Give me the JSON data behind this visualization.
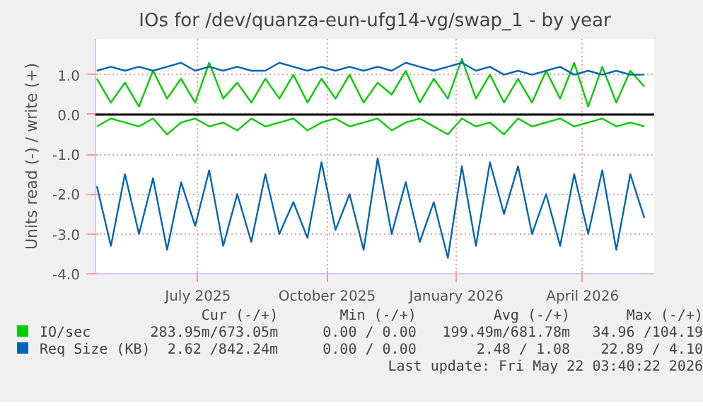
{
  "chart_data": {
    "type": "line",
    "title": "IOs for /dev/quanza-eun-ufg14-vg/swap_1 - by year",
    "ylabel": "Units read (-) / write (+)",
    "x": [
      "2025-04-20",
      "2025-04-30",
      "2025-05-10",
      "2025-05-20",
      "2025-05-30",
      "2025-06-09",
      "2025-06-19",
      "2025-06-29",
      "2025-07-09",
      "2025-07-19",
      "2025-07-29",
      "2025-08-08",
      "2025-08-18",
      "2025-08-28",
      "2025-09-07",
      "2025-09-17",
      "2025-09-27",
      "2025-10-07",
      "2025-10-17",
      "2025-10-27",
      "2025-11-06",
      "2025-11-16",
      "2025-11-26",
      "2025-12-06",
      "2025-12-16",
      "2025-12-26",
      "2026-01-05",
      "2026-01-15",
      "2026-01-25",
      "2026-02-04",
      "2026-02-14",
      "2026-02-24",
      "2026-03-06",
      "2026-03-16",
      "2026-03-26",
      "2026-04-05",
      "2026-04-15",
      "2026-04-25",
      "2026-05-05",
      "2026-05-15"
    ],
    "series": [
      {
        "name": "IO/sec",
        "color": "#00cc00",
        "values": [
          0.9,
          0.3,
          0.8,
          0.2,
          1.1,
          0.4,
          0.9,
          0.3,
          1.3,
          0.4,
          0.8,
          0.3,
          0.9,
          0.4,
          1.0,
          0.3,
          0.9,
          0.4,
          1.0,
          0.3,
          0.8,
          0.5,
          1.1,
          0.3,
          0.9,
          0.4,
          1.4,
          0.4,
          1.0,
          0.3,
          0.9,
          0.3,
          1.1,
          0.4,
          1.3,
          0.2,
          1.2,
          0.3,
          1.1,
          0.7
        ]
      },
      {
        "color": "#00cc00",
        "values": [
          -0.3,
          -0.1,
          -0.2,
          -0.3,
          -0.1,
          -0.5,
          -0.2,
          -0.1,
          -0.3,
          -0.2,
          -0.4,
          -0.1,
          -0.3,
          -0.2,
          -0.1,
          -0.4,
          -0.2,
          -0.1,
          -0.3,
          -0.2,
          -0.1,
          -0.4,
          -0.2,
          -0.1,
          -0.3,
          -0.5,
          -0.1,
          -0.3,
          -0.2,
          -0.5,
          -0.1,
          -0.3,
          -0.2,
          -0.1,
          -0.3,
          -0.2,
          -0.1,
          -0.3,
          -0.2,
          -0.3
        ]
      },
      {
        "name": "Req Size (KB)",
        "color": "#0066b3",
        "values": [
          1.1,
          1.2,
          1.1,
          1.2,
          1.1,
          1.2,
          1.3,
          1.1,
          1.2,
          1.1,
          1.2,
          1.1,
          1.1,
          1.3,
          1.2,
          1.1,
          1.2,
          1.1,
          1.2,
          1.1,
          1.2,
          1.1,
          1.3,
          1.2,
          1.1,
          1.2,
          1.3,
          1.1,
          1.2,
          1.0,
          1.1,
          1.0,
          1.1,
          1.2,
          1.0,
          1.1,
          1.0,
          1.1,
          1.0,
          1.0
        ]
      },
      {
        "color": "#0066b3",
        "values": [
          -1.8,
          -3.3,
          -1.5,
          -3.0,
          -1.6,
          -3.4,
          -1.7,
          -2.8,
          -1.4,
          -3.3,
          -2.0,
          -3.2,
          -1.5,
          -3.0,
          -2.2,
          -3.1,
          -1.2,
          -2.9,
          -2.0,
          -3.4,
          -1.1,
          -3.0,
          -1.7,
          -3.2,
          -2.2,
          -3.6,
          -1.3,
          -3.3,
          -1.2,
          -2.5,
          -1.3,
          -3.0,
          -2.0,
          -3.3,
          -1.5,
          -3.0,
          -1.4,
          -3.4,
          -1.5,
          -2.6
        ]
      }
    ],
    "xlim": [
      "2025-04-19",
      "2026-05-22"
    ],
    "xticks": [
      {
        "value": "2025-07-01",
        "label": "July 2025"
      },
      {
        "value": "2025-10-01",
        "label": "October 2025"
      },
      {
        "value": "2026-01-01",
        "label": "January 2026"
      },
      {
        "value": "2026-04-01",
        "label": "April 2026"
      }
    ],
    "ylim": [
      -4.0,
      1.9
    ],
    "yticks": [
      {
        "value": -4,
        "label": "-4.0"
      },
      {
        "value": -3,
        "label": "-3.0"
      },
      {
        "value": -2,
        "label": "-2.0"
      },
      {
        "value": -1,
        "label": "-1.0"
      },
      {
        "value": 0,
        "label": "0.0"
      },
      {
        "value": 1,
        "label": "1.0"
      }
    ],
    "grid": true,
    "ref_lines": [
      {
        "axis": "y",
        "value": 0,
        "color": "#000000"
      }
    ],
    "legend": "bottom",
    "annotations": [
      "Cur (-/+)",
      "Min (-/+)",
      "Avg (-/+)",
      "Max (-/+)",
      "283.95m/673.05m",
      "0.00 / 0.00",
      "199.49m/681.78m",
      "34.96 /104.19",
      "2.62 /842.24m",
      "0.00 / 0.00",
      "2.48 / 1.08",
      "22.89 / 4.10",
      "Last update: Fri May 22 03:40:22 2026"
    ]
  }
}
